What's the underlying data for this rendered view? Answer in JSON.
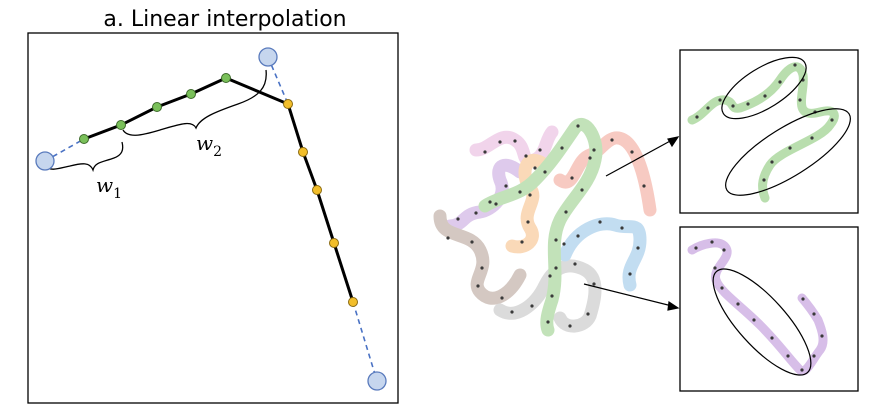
{
  "panel_a": {
    "title": "a. Linear interpolation",
    "w1_symbol": "w",
    "w1_index": "1",
    "w2_symbol": "w",
    "w2_index": "2"
  },
  "colors": {
    "anchor_fill": "#c6d6ee",
    "anchor_stroke": "#5a7bbd",
    "dashed_line": "#4a72c4",
    "green_point": "#7ac05a",
    "yellow_point": "#f2be2a",
    "path": "#000000",
    "trajectory_colors": [
      "#9bd08c",
      "#f2a89b",
      "#c9a8e0",
      "#f7c08a",
      "#e9b9de",
      "#b9a59a",
      "#c4c4c4",
      "#9bc7e8"
    ]
  }
}
